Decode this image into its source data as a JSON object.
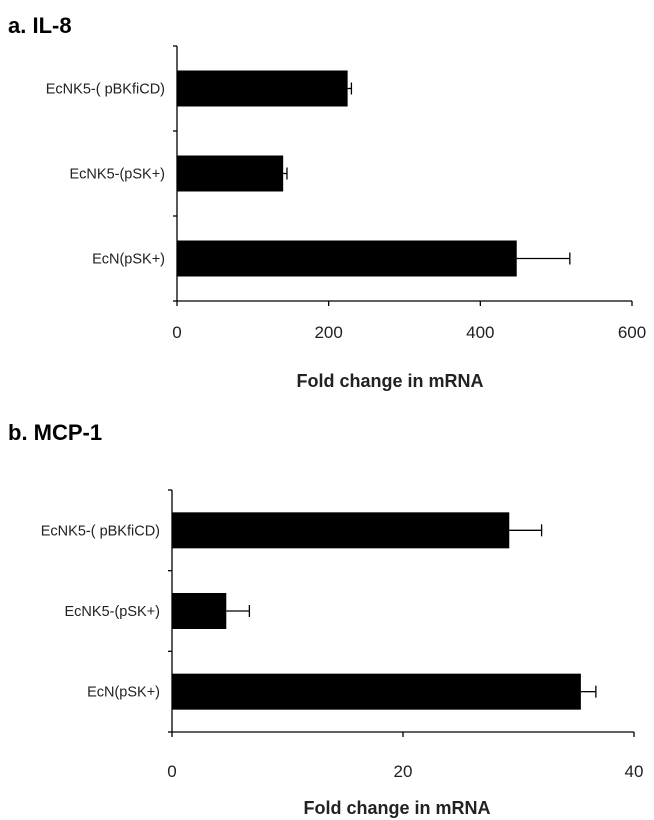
{
  "chart_data": [
    {
      "type": "bar",
      "orientation": "horizontal",
      "title": "a. IL-8",
      "categories": [
        "EcNK5-( pBKfiCD)",
        "EcNK5-(pSK+)",
        "EcN(pSK+)"
      ],
      "values": [
        225,
        140,
        448
      ],
      "errors": [
        5,
        5,
        70
      ],
      "xlabel": "Fold change in mRNA",
      "ylabel": "",
      "xlim": [
        0,
        600
      ],
      "xticks": [
        "0",
        "200",
        "400",
        "600"
      ],
      "xtick_values": [
        0,
        200,
        400,
        600
      ],
      "grid": false,
      "bar_color": "#000000"
    },
    {
      "type": "bar",
      "orientation": "horizontal",
      "title": "b. MCP-1",
      "categories": [
        "EcNK5-( pBKfiCD)",
        "EcNK5-(pSK+)",
        "EcN(pSK+)"
      ],
      "values": [
        29.2,
        4.7,
        35.4
      ],
      "errors": [
        2.8,
        2.0,
        1.3
      ],
      "xlabel": "Fold change in mRNA",
      "ylabel": "",
      "xlim": [
        0,
        40
      ],
      "xticks": [
        "0",
        "20",
        "40"
      ],
      "xtick_values": [
        0,
        20,
        40
      ],
      "grid": false,
      "bar_color": "#000000"
    }
  ]
}
